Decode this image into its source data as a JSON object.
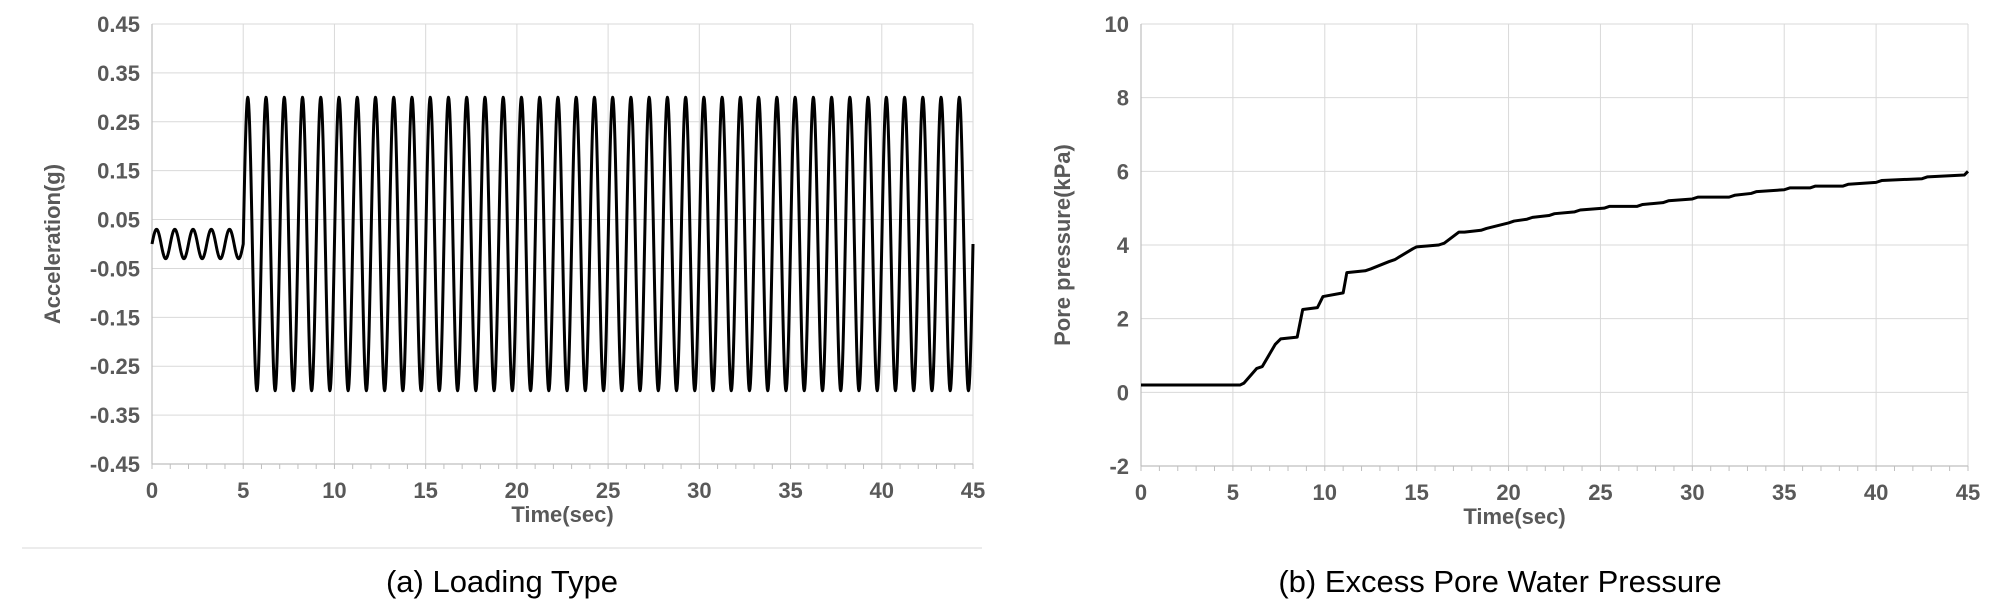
{
  "chart_data": [
    {
      "type": "line",
      "caption": "(a) Loading Type",
      "xlabel": "Time(sec)",
      "ylabel": "Acceleration(g)",
      "xlim": [
        0,
        45
      ],
      "ylim": [
        -0.45,
        0.45
      ],
      "x_ticks": [
        0,
        5,
        10,
        15,
        20,
        25,
        30,
        35,
        40,
        45
      ],
      "y_ticks": [
        -0.45,
        -0.35,
        -0.25,
        -0.15,
        -0.05,
        0.05,
        0.15,
        0.25,
        0.35,
        0.45
      ],
      "y_tick_labels": [
        "-0.45",
        "-0.35",
        "-0.25",
        "-0.15",
        "-0.05",
        "0.05",
        "0.15",
        "0.25",
        "0.35",
        "0.45"
      ],
      "x_tick_labels": [
        "0",
        "5",
        "10",
        "15",
        "20",
        "25",
        "30",
        "35",
        "40",
        "45"
      ],
      "grid": true,
      "series": [
        {
          "color": "#000000",
          "segments": [
            {
              "t_start": 0,
              "t_end": 5,
              "amplitude": 0.03,
              "frequency_hz": 1
            },
            {
              "t_start": 5,
              "t_end": 45,
              "amplitude": 0.3,
              "frequency_hz": 1
            }
          ]
        }
      ]
    },
    {
      "type": "line",
      "caption": "(b) Excess Pore Water Pressure",
      "xlabel": "Time(sec)",
      "ylabel": "Pore pressure(kPa)",
      "xlim": [
        0,
        45
      ],
      "ylim": [
        -2,
        10
      ],
      "x_ticks": [
        0,
        5,
        10,
        15,
        20,
        25,
        30,
        35,
        40,
        45
      ],
      "y_ticks": [
        -2,
        0,
        2,
        4,
        6,
        8,
        10
      ],
      "y_tick_labels": [
        "-2",
        "0",
        "2",
        "4",
        "6",
        "8",
        "10"
      ],
      "x_tick_labels": [
        "0",
        "5",
        "10",
        "15",
        "20",
        "25",
        "30",
        "35",
        "40",
        "45"
      ],
      "grid": true,
      "series": [
        {
          "color": "#000000",
          "x": [
            0,
            5.4,
            5.6,
            6.3,
            6.6,
            7.3,
            7.6,
            8.5,
            8.8,
            9.6,
            9.9,
            11.0,
            11.2,
            12.2,
            12.5,
            13.5,
            13.8,
            14.8,
            15.0,
            16.2,
            16.5,
            17.3,
            17.6,
            18.5,
            18.8,
            20.0,
            20.3,
            21.0,
            21.3,
            22.2,
            22.5,
            23.6,
            23.9,
            25.2,
            25.5,
            27.0,
            27.3,
            28.4,
            28.7,
            30.0,
            30.3,
            32.0,
            32.3,
            33.2,
            33.5,
            35.0,
            35.3,
            36.4,
            36.7,
            38.2,
            38.5,
            40.0,
            40.3,
            42.5,
            42.8,
            44.8,
            45.0
          ],
          "y": [
            0.2,
            0.2,
            0.25,
            0.65,
            0.7,
            1.3,
            1.45,
            1.5,
            2.25,
            2.3,
            2.6,
            2.7,
            3.25,
            3.3,
            3.35,
            3.55,
            3.6,
            3.9,
            3.95,
            4.0,
            4.05,
            4.35,
            4.35,
            4.4,
            4.45,
            4.6,
            4.65,
            4.7,
            4.75,
            4.8,
            4.85,
            4.9,
            4.95,
            5.0,
            5.05,
            5.05,
            5.1,
            5.15,
            5.2,
            5.25,
            5.3,
            5.3,
            5.35,
            5.4,
            5.45,
            5.5,
            5.55,
            5.55,
            5.6,
            5.6,
            5.65,
            5.7,
            5.75,
            5.8,
            5.85,
            5.9,
            6.0
          ]
        }
      ]
    }
  ]
}
